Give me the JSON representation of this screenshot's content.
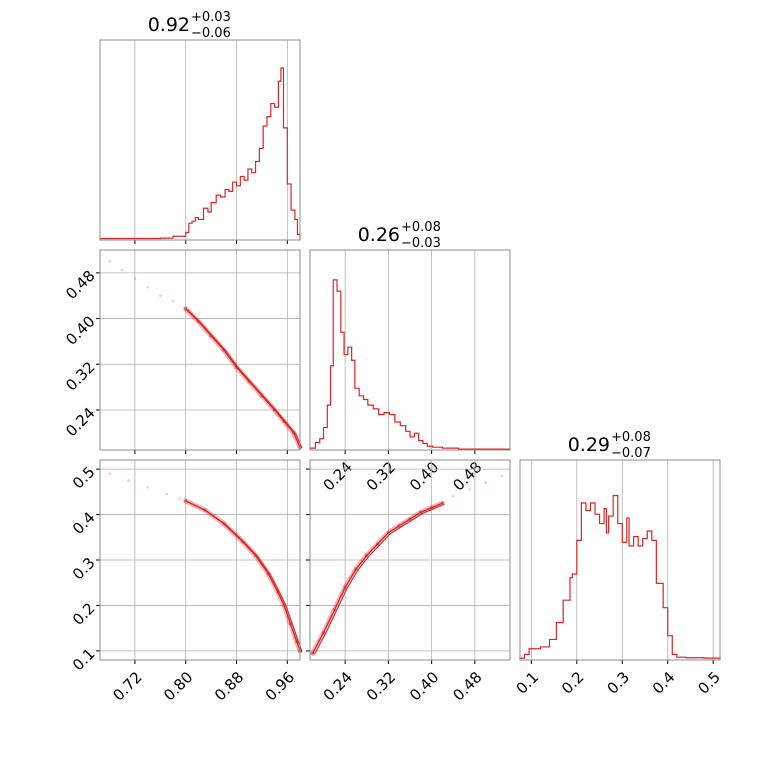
{
  "line_color": "#d62728",
  "grid_color": "#b0b0b0",
  "chart_data": [
    {
      "panel": "hist-1",
      "type": "histogram",
      "title": {
        "value": "0.92",
        "plus": "+0.03",
        "minus": "−0.06"
      },
      "xlim": [
        0.665,
        0.98
      ],
      "x_ticks": [
        0.72,
        0.8,
        0.88,
        0.96
      ],
      "x_ticklabels": [],
      "y_ticklabels": [],
      "bins": [
        [
          0.665,
          0.008
        ],
        [
          0.73,
          0.008
        ],
        [
          0.76,
          0.01
        ],
        [
          0.78,
          0.02
        ],
        [
          0.8,
          0.04
        ],
        [
          0.805,
          0.09
        ],
        [
          0.81,
          0.1
        ],
        [
          0.815,
          0.12
        ],
        [
          0.82,
          0.11
        ],
        [
          0.828,
          0.17
        ],
        [
          0.835,
          0.15
        ],
        [
          0.84,
          0.2
        ],
        [
          0.848,
          0.24
        ],
        [
          0.855,
          0.23
        ],
        [
          0.862,
          0.27
        ],
        [
          0.868,
          0.26
        ],
        [
          0.874,
          0.31
        ],
        [
          0.88,
          0.29
        ],
        [
          0.886,
          0.34
        ],
        [
          0.892,
          0.32
        ],
        [
          0.898,
          0.38
        ],
        [
          0.904,
          0.36
        ],
        [
          0.91,
          0.42
        ],
        [
          0.916,
          0.49
        ],
        [
          0.922,
          0.61
        ],
        [
          0.928,
          0.66
        ],
        [
          0.934,
          0.73
        ],
        [
          0.94,
          0.71
        ],
        [
          0.946,
          0.85
        ],
        [
          0.95,
          0.92
        ],
        [
          0.954,
          0.6
        ],
        [
          0.96,
          0.3
        ],
        [
          0.966,
          0.16
        ],
        [
          0.972,
          0.11
        ],
        [
          0.976,
          0.03
        ]
      ],
      "ymax": 1.0
    },
    {
      "panel": "hist-2",
      "type": "histogram",
      "title": {
        "value": "0.26",
        "plus": "+0.08",
        "minus": "−0.03"
      },
      "xlim": [
        0.175,
        0.545
      ],
      "x_ticks": [
        0.24,
        0.32,
        0.4,
        0.48
      ],
      "x_ticklabels": [
        "0.24",
        "0.32",
        "0.40",
        "0.48"
      ],
      "y_ticklabels": [],
      "bins": [
        [
          0.175,
          0.01
        ],
        [
          0.185,
          0.04
        ],
        [
          0.193,
          0.06
        ],
        [
          0.2,
          0.12
        ],
        [
          0.207,
          0.24
        ],
        [
          0.213,
          0.45
        ],
        [
          0.218,
          0.91
        ],
        [
          0.225,
          0.85
        ],
        [
          0.232,
          0.63
        ],
        [
          0.238,
          0.51
        ],
        [
          0.245,
          0.55
        ],
        [
          0.252,
          0.48
        ],
        [
          0.258,
          0.33
        ],
        [
          0.266,
          0.29
        ],
        [
          0.274,
          0.27
        ],
        [
          0.282,
          0.24
        ],
        [
          0.292,
          0.22
        ],
        [
          0.302,
          0.19
        ],
        [
          0.312,
          0.2
        ],
        [
          0.322,
          0.19
        ],
        [
          0.332,
          0.15
        ],
        [
          0.342,
          0.13
        ],
        [
          0.352,
          0.1
        ],
        [
          0.36,
          0.07
        ],
        [
          0.368,
          0.09
        ],
        [
          0.376,
          0.05
        ],
        [
          0.384,
          0.035
        ],
        [
          0.392,
          0.02
        ],
        [
          0.402,
          0.015
        ],
        [
          0.42,
          0.01
        ],
        [
          0.45,
          0.005
        ],
        [
          0.5,
          0.005
        ]
      ],
      "ymax": 1.0
    },
    {
      "panel": "hist-3",
      "type": "histogram",
      "title": {
        "value": "0.29",
        "plus": "+0.08",
        "minus": "−0.07"
      },
      "xlim": [
        0.075,
        0.515
      ],
      "x_ticks": [
        0.1,
        0.2,
        0.3,
        0.4,
        0.5
      ],
      "x_ticklabels": [
        "0.1",
        "0.2",
        "0.3",
        "0.4",
        "0.5"
      ],
      "y_ticklabels": [],
      "bins": [
        [
          0.075,
          0.01
        ],
        [
          0.085,
          0.03
        ],
        [
          0.095,
          0.06
        ],
        [
          0.12,
          0.07
        ],
        [
          0.14,
          0.11
        ],
        [
          0.155,
          0.2
        ],
        [
          0.17,
          0.32
        ],
        [
          0.185,
          0.44
        ],
        [
          0.19,
          0.46
        ],
        [
          0.2,
          0.64
        ],
        [
          0.21,
          0.84
        ],
        [
          0.22,
          0.8
        ],
        [
          0.23,
          0.84
        ],
        [
          0.24,
          0.78
        ],
        [
          0.25,
          0.73
        ],
        [
          0.26,
          0.81
        ],
        [
          0.265,
          0.68
        ],
        [
          0.27,
          0.77
        ],
        [
          0.28,
          0.88
        ],
        [
          0.29,
          0.73
        ],
        [
          0.3,
          0.63
        ],
        [
          0.31,
          0.76
        ],
        [
          0.315,
          0.61
        ],
        [
          0.325,
          0.66
        ],
        [
          0.335,
          0.61
        ],
        [
          0.345,
          0.65
        ],
        [
          0.355,
          0.69
        ],
        [
          0.365,
          0.64
        ],
        [
          0.375,
          0.41
        ],
        [
          0.38,
          0.41
        ],
        [
          0.39,
          0.28
        ],
        [
          0.4,
          0.13
        ],
        [
          0.41,
          0.03
        ],
        [
          0.42,
          0.015
        ],
        [
          0.44,
          0.012
        ],
        [
          0.48,
          0.01
        ]
      ],
      "ymax": 1.0
    },
    {
      "panel": "scatter-2-1",
      "type": "scatter",
      "xlim": [
        0.665,
        0.98
      ],
      "ylim": [
        0.17,
        0.52
      ],
      "x_ticks": [
        0.72,
        0.8,
        0.88,
        0.96
      ],
      "x_ticklabels": [],
      "y_ticks": [
        0.24,
        0.32,
        0.4,
        0.48
      ],
      "y_ticklabels": [
        "0.24",
        "0.32",
        "0.40",
        "0.48"
      ],
      "points_sparse": [
        [
          0.68,
          0.5
        ],
        [
          0.7,
          0.485
        ],
        [
          0.72,
          0.47
        ],
        [
          0.74,
          0.455
        ],
        [
          0.76,
          0.44
        ],
        [
          0.78,
          0.43
        ]
      ],
      "points_dense": [
        [
          0.8,
          0.417
        ],
        [
          0.82,
          0.395
        ],
        [
          0.84,
          0.37
        ],
        [
          0.86,
          0.345
        ],
        [
          0.88,
          0.315
        ],
        [
          0.9,
          0.29
        ],
        [
          0.92,
          0.265
        ],
        [
          0.94,
          0.24
        ],
        [
          0.955,
          0.22
        ],
        [
          0.97,
          0.2
        ],
        [
          0.98,
          0.175
        ]
      ]
    },
    {
      "panel": "scatter-3-1",
      "type": "scatter",
      "xlim": [
        0.665,
        0.98
      ],
      "ylim": [
        0.08,
        0.52
      ],
      "x_ticks": [
        0.72,
        0.8,
        0.88,
        0.96
      ],
      "x_ticklabels": [
        "0.72",
        "0.80",
        "0.88",
        "0.96"
      ],
      "y_ticks": [
        0.1,
        0.2,
        0.3,
        0.4,
        0.5
      ],
      "y_ticklabels": [
        "0.1",
        "0.2",
        "0.3",
        "0.4",
        "0.5"
      ],
      "points_sparse": [
        [
          0.68,
          0.49
        ],
        [
          0.71,
          0.475
        ],
        [
          0.74,
          0.46
        ],
        [
          0.77,
          0.445
        ],
        [
          0.79,
          0.435
        ]
      ],
      "points_dense": [
        [
          0.8,
          0.43
        ],
        [
          0.83,
          0.41
        ],
        [
          0.86,
          0.38
        ],
        [
          0.89,
          0.34
        ],
        [
          0.91,
          0.31
        ],
        [
          0.93,
          0.27
        ],
        [
          0.945,
          0.23
        ],
        [
          0.955,
          0.2
        ],
        [
          0.965,
          0.16
        ],
        [
          0.975,
          0.12
        ],
        [
          0.98,
          0.1
        ]
      ]
    },
    {
      "panel": "scatter-3-2",
      "type": "scatter",
      "xlim": [
        0.175,
        0.545
      ],
      "ylim": [
        0.08,
        0.52
      ],
      "x_ticks": [
        0.24,
        0.32,
        0.4,
        0.48
      ],
      "x_ticklabels": [
        "0.24",
        "0.32",
        "0.40",
        "0.48"
      ],
      "y_ticks": [
        0.1,
        0.2,
        0.3,
        0.4,
        0.5
      ],
      "y_ticklabels": [],
      "points_sparse": [
        [
          0.44,
          0.44
        ],
        [
          0.47,
          0.455
        ],
        [
          0.5,
          0.47
        ],
        [
          0.53,
          0.485
        ]
      ],
      "points_dense": [
        [
          0.18,
          0.095
        ],
        [
          0.2,
          0.14
        ],
        [
          0.22,
          0.19
        ],
        [
          0.24,
          0.24
        ],
        [
          0.26,
          0.28
        ],
        [
          0.28,
          0.31
        ],
        [
          0.3,
          0.335
        ],
        [
          0.32,
          0.36
        ],
        [
          0.34,
          0.375
        ],
        [
          0.36,
          0.39
        ],
        [
          0.38,
          0.405
        ],
        [
          0.4,
          0.415
        ],
        [
          0.42,
          0.425
        ]
      ]
    }
  ]
}
